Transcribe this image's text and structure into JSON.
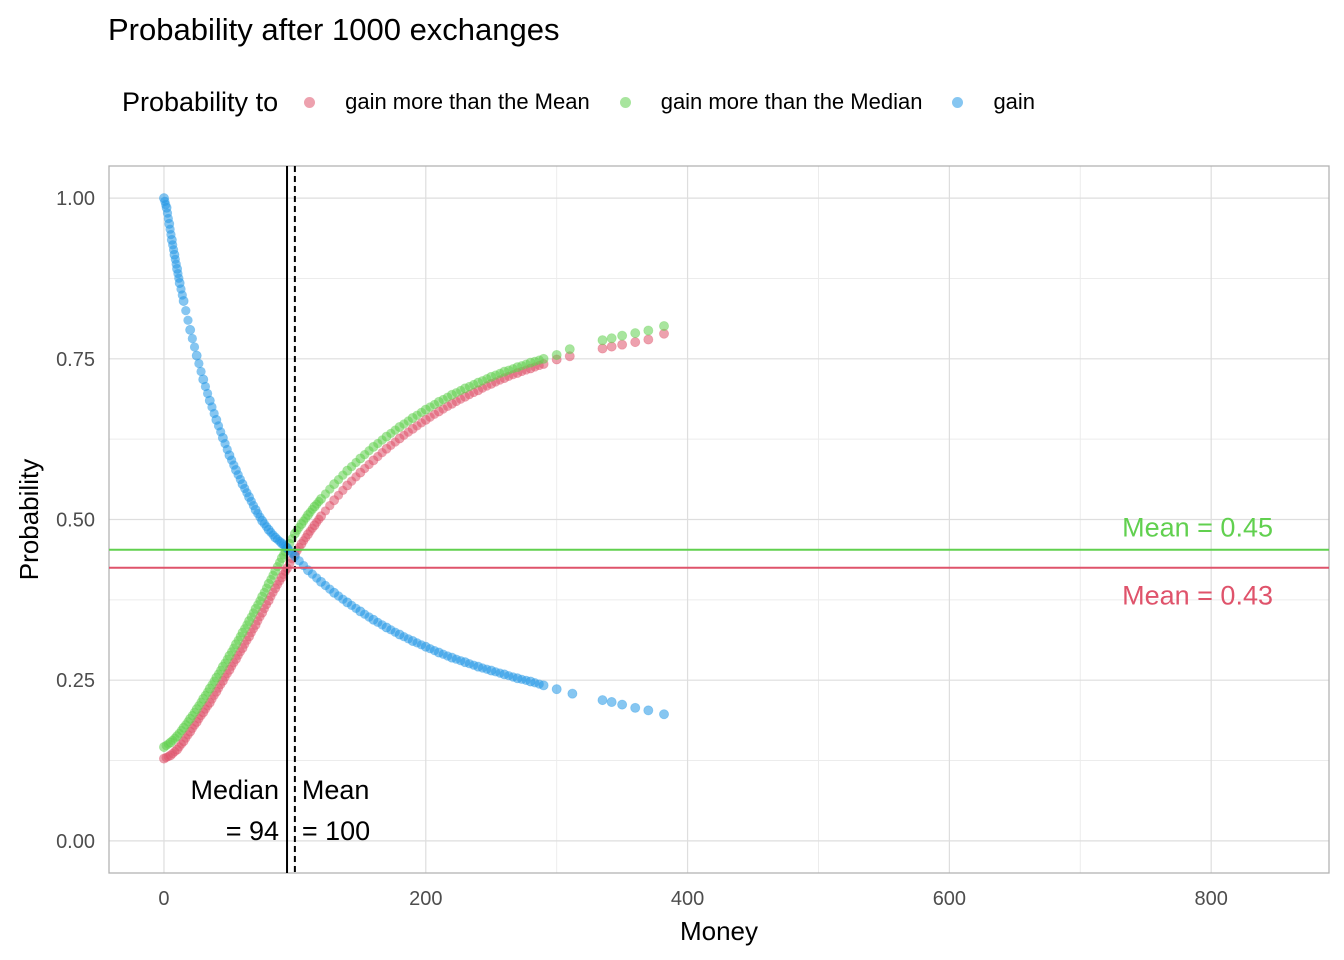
{
  "chart_data": {
    "type": "scatter",
    "title": "Probability after 1000 exchanges",
    "xlabel": "Money",
    "ylabel": "Probability",
    "xlim": [
      -42,
      890
    ],
    "ylim": [
      -0.05,
      1.05
    ],
    "x_ticks": [
      0,
      200,
      400,
      600,
      800
    ],
    "x_tick_labels": [
      "0",
      "200",
      "400",
      "600",
      "800"
    ],
    "y_ticks": [
      0,
      0.25,
      0.5,
      0.75,
      1
    ],
    "y_tick_labels": [
      "0.00",
      "0.25",
      "0.50",
      "0.75",
      "1.00"
    ],
    "grid": true,
    "legend": {
      "title": "Probability to",
      "placement": "top",
      "entries": [
        "gain more than the Mean",
        "gain more than the Median",
        "gain"
      ]
    },
    "series": [
      {
        "name": "gain more than the Mean",
        "color": "#DF536B",
        "points": [
          [
            0,
            0.128
          ],
          [
            5,
            0.133
          ],
          [
            10,
            0.142
          ],
          [
            15,
            0.155
          ],
          [
            20,
            0.17
          ],
          [
            25,
            0.185
          ],
          [
            30,
            0.2
          ],
          [
            35,
            0.215
          ],
          [
            40,
            0.232
          ],
          [
            45,
            0.249
          ],
          [
            50,
            0.266
          ],
          [
            55,
            0.283
          ],
          [
            60,
            0.3
          ],
          [
            65,
            0.318
          ],
          [
            70,
            0.336
          ],
          [
            75,
            0.355
          ],
          [
            80,
            0.374
          ],
          [
            85,
            0.393
          ],
          [
            90,
            0.41
          ],
          [
            94,
            0.424
          ],
          [
            100,
            0.446
          ],
          [
            105,
            0.462
          ],
          [
            110,
            0.477
          ],
          [
            115,
            0.491
          ],
          [
            120,
            0.505
          ],
          [
            130,
            0.53
          ],
          [
            140,
            0.553
          ],
          [
            150,
            0.573
          ],
          [
            160,
            0.592
          ],
          [
            170,
            0.61
          ],
          [
            180,
            0.626
          ],
          [
            190,
            0.641
          ],
          [
            200,
            0.655
          ],
          [
            210,
            0.668
          ],
          [
            220,
            0.68
          ],
          [
            230,
            0.691
          ],
          [
            240,
            0.701
          ],
          [
            250,
            0.711
          ],
          [
            260,
            0.72
          ],
          [
            270,
            0.728
          ],
          [
            280,
            0.735
          ],
          [
            290,
            0.742
          ],
          [
            300,
            0.749
          ],
          [
            310,
            0.754
          ],
          [
            335,
            0.766
          ],
          [
            342,
            0.769
          ],
          [
            350,
            0.772
          ],
          [
            360,
            0.776
          ],
          [
            370,
            0.78
          ],
          [
            382,
            0.789
          ]
        ]
      },
      {
        "name": "gain more than the Median",
        "color": "#61D04F",
        "points": [
          [
            0,
            0.146
          ],
          [
            5,
            0.153
          ],
          [
            10,
            0.163
          ],
          [
            15,
            0.176
          ],
          [
            20,
            0.19
          ],
          [
            25,
            0.205
          ],
          [
            30,
            0.221
          ],
          [
            35,
            0.237
          ],
          [
            40,
            0.254
          ],
          [
            45,
            0.271
          ],
          [
            50,
            0.288
          ],
          [
            55,
            0.306
          ],
          [
            60,
            0.324
          ],
          [
            65,
            0.342
          ],
          [
            70,
            0.361
          ],
          [
            75,
            0.38
          ],
          [
            80,
            0.4
          ],
          [
            85,
            0.42
          ],
          [
            90,
            0.44
          ],
          [
            94,
            0.455
          ],
          [
            100,
            0.478
          ],
          [
            105,
            0.493
          ],
          [
            110,
            0.507
          ],
          [
            115,
            0.52
          ],
          [
            120,
            0.532
          ],
          [
            130,
            0.555
          ],
          [
            140,
            0.576
          ],
          [
            150,
            0.595
          ],
          [
            160,
            0.613
          ],
          [
            170,
            0.629
          ],
          [
            180,
            0.644
          ],
          [
            190,
            0.658
          ],
          [
            200,
            0.671
          ],
          [
            210,
            0.683
          ],
          [
            220,
            0.694
          ],
          [
            230,
            0.704
          ],
          [
            240,
            0.713
          ],
          [
            250,
            0.722
          ],
          [
            260,
            0.73
          ],
          [
            270,
            0.737
          ],
          [
            280,
            0.744
          ],
          [
            290,
            0.75
          ],
          [
            300,
            0.756
          ],
          [
            310,
            0.765
          ],
          [
            335,
            0.779
          ],
          [
            342,
            0.782
          ],
          [
            350,
            0.786
          ],
          [
            360,
            0.79
          ],
          [
            370,
            0.794
          ],
          [
            382,
            0.801
          ]
        ]
      },
      {
        "name": "gain",
        "color": "#2297E6",
        "points": [
          [
            0,
            1.0
          ],
          [
            2,
            0.985
          ],
          [
            4,
            0.96
          ],
          [
            6,
            0.935
          ],
          [
            8,
            0.912
          ],
          [
            10,
            0.89
          ],
          [
            12,
            0.868
          ],
          [
            15,
            0.84
          ],
          [
            20,
            0.795
          ],
          [
            25,
            0.755
          ],
          [
            30,
            0.718
          ],
          [
            35,
            0.685
          ],
          [
            40,
            0.655
          ],
          [
            45,
            0.627
          ],
          [
            50,
            0.6
          ],
          [
            55,
            0.577
          ],
          [
            60,
            0.555
          ],
          [
            65,
            0.535
          ],
          [
            70,
            0.515
          ],
          [
            75,
            0.498
          ],
          [
            80,
            0.484
          ],
          [
            85,
            0.472
          ],
          [
            90,
            0.463
          ],
          [
            94,
            0.456
          ],
          [
            100,
            0.443
          ],
          [
            110,
            0.421
          ],
          [
            120,
            0.403
          ],
          [
            130,
            0.386
          ],
          [
            140,
            0.371
          ],
          [
            150,
            0.357
          ],
          [
            160,
            0.344
          ],
          [
            170,
            0.332
          ],
          [
            180,
            0.321
          ],
          [
            190,
            0.311
          ],
          [
            200,
            0.302
          ],
          [
            210,
            0.293
          ],
          [
            220,
            0.285
          ],
          [
            230,
            0.278
          ],
          [
            240,
            0.271
          ],
          [
            250,
            0.265
          ],
          [
            260,
            0.259
          ],
          [
            270,
            0.253
          ],
          [
            280,
            0.248
          ],
          [
            290,
            0.242
          ],
          [
            300,
            0.236
          ],
          [
            312,
            0.229
          ],
          [
            335,
            0.219
          ],
          [
            342,
            0.216
          ],
          [
            350,
            0.212
          ],
          [
            360,
            0.207
          ],
          [
            370,
            0.203
          ],
          [
            382,
            0.197
          ]
        ]
      }
    ],
    "reference_lines": [
      {
        "orientation": "vertical",
        "x": 94,
        "style": "solid",
        "color": "#000000",
        "label_line1": "Median",
        "label_line2": "= 94"
      },
      {
        "orientation": "vertical",
        "x": 100,
        "style": "dashed",
        "color": "#000000",
        "label_line1": "Mean",
        "label_line2": "= 100"
      },
      {
        "orientation": "horizontal",
        "y": 0.453,
        "color": "#61D04F",
        "label": "Mean = 0.45"
      },
      {
        "orientation": "horizontal",
        "y": 0.425,
        "color": "#DF536B",
        "label": "Mean = 0.43"
      }
    ]
  }
}
